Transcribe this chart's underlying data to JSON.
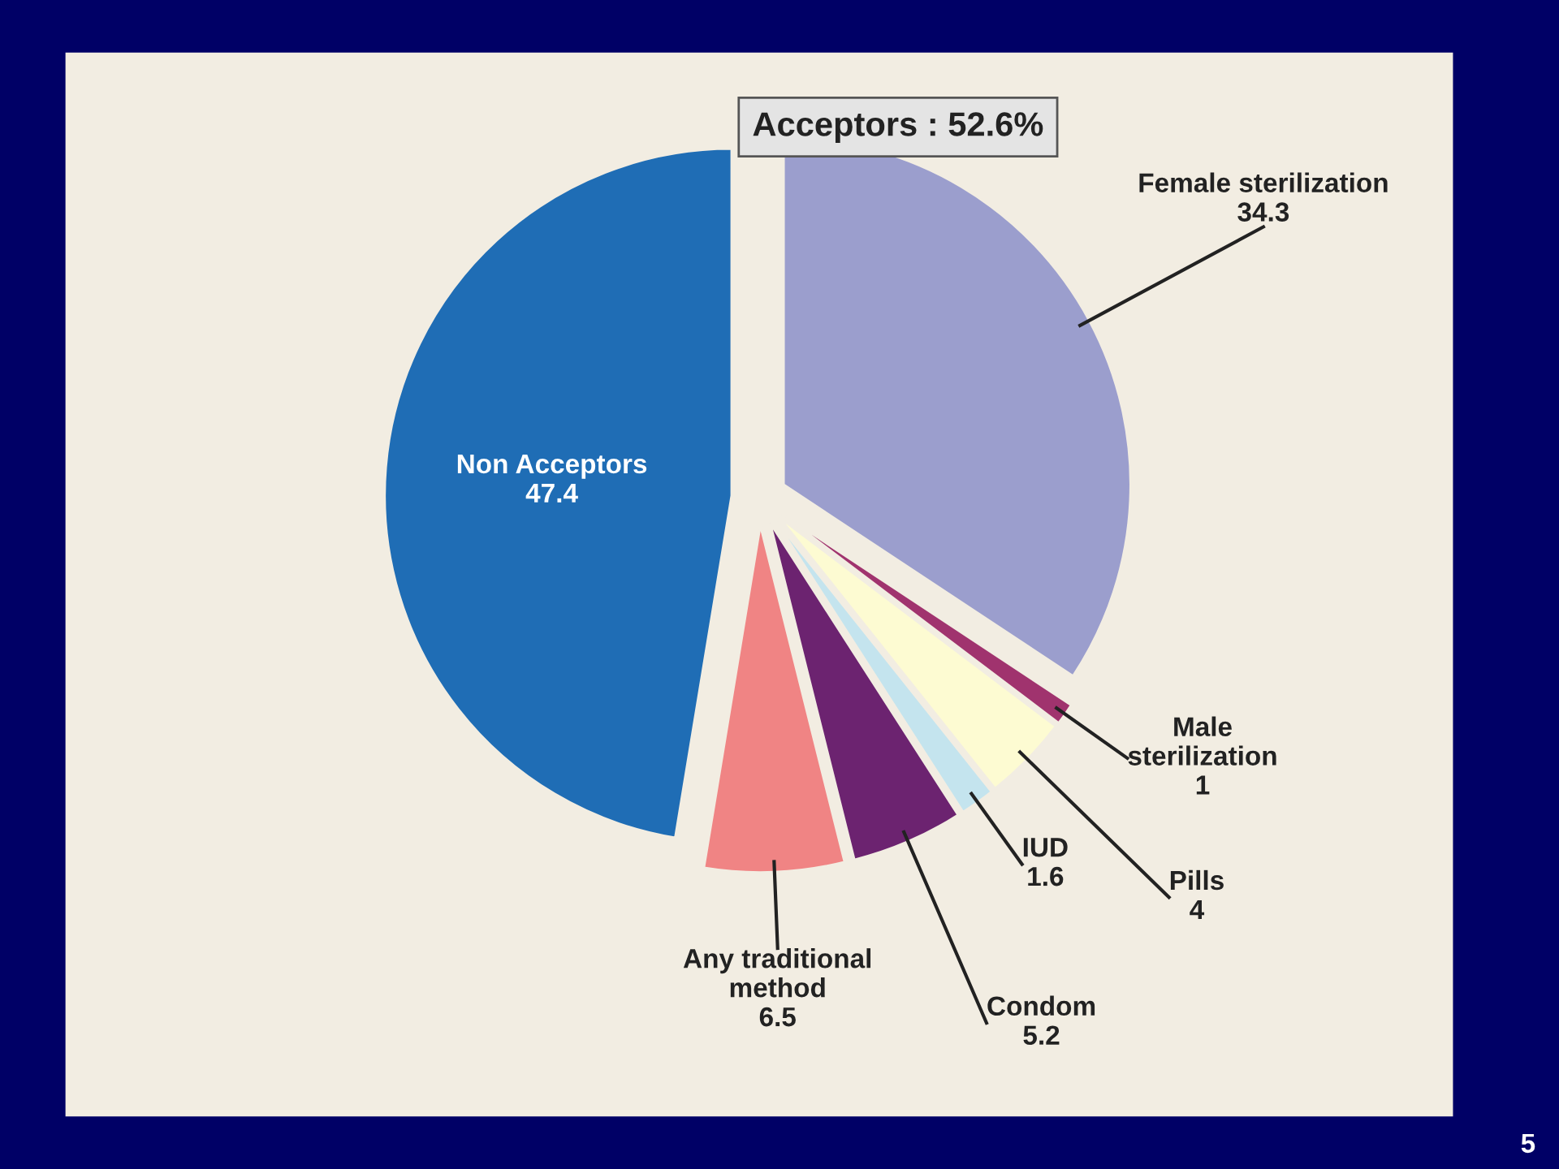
{
  "chart_data": {
    "type": "pie",
    "categories": [
      "Female sterilization",
      "Male\nsterilization",
      "Pills",
      "IUD",
      "Condom",
      "Any traditional\nmethod",
      "Non Acceptors"
    ],
    "values": [
      34.3,
      1,
      4,
      1.6,
      5.2,
      6.5,
      47.4
    ],
    "colors": [
      "#9b9ecd",
      "#a0336e",
      "#fdfbd2",
      "#c4e4ee",
      "#6c2370",
      "#f08484",
      "#1f6db5"
    ],
    "data_labels": true,
    "annotations": [
      "Acceptors : 52.6%",
      "5"
    ]
  }
}
